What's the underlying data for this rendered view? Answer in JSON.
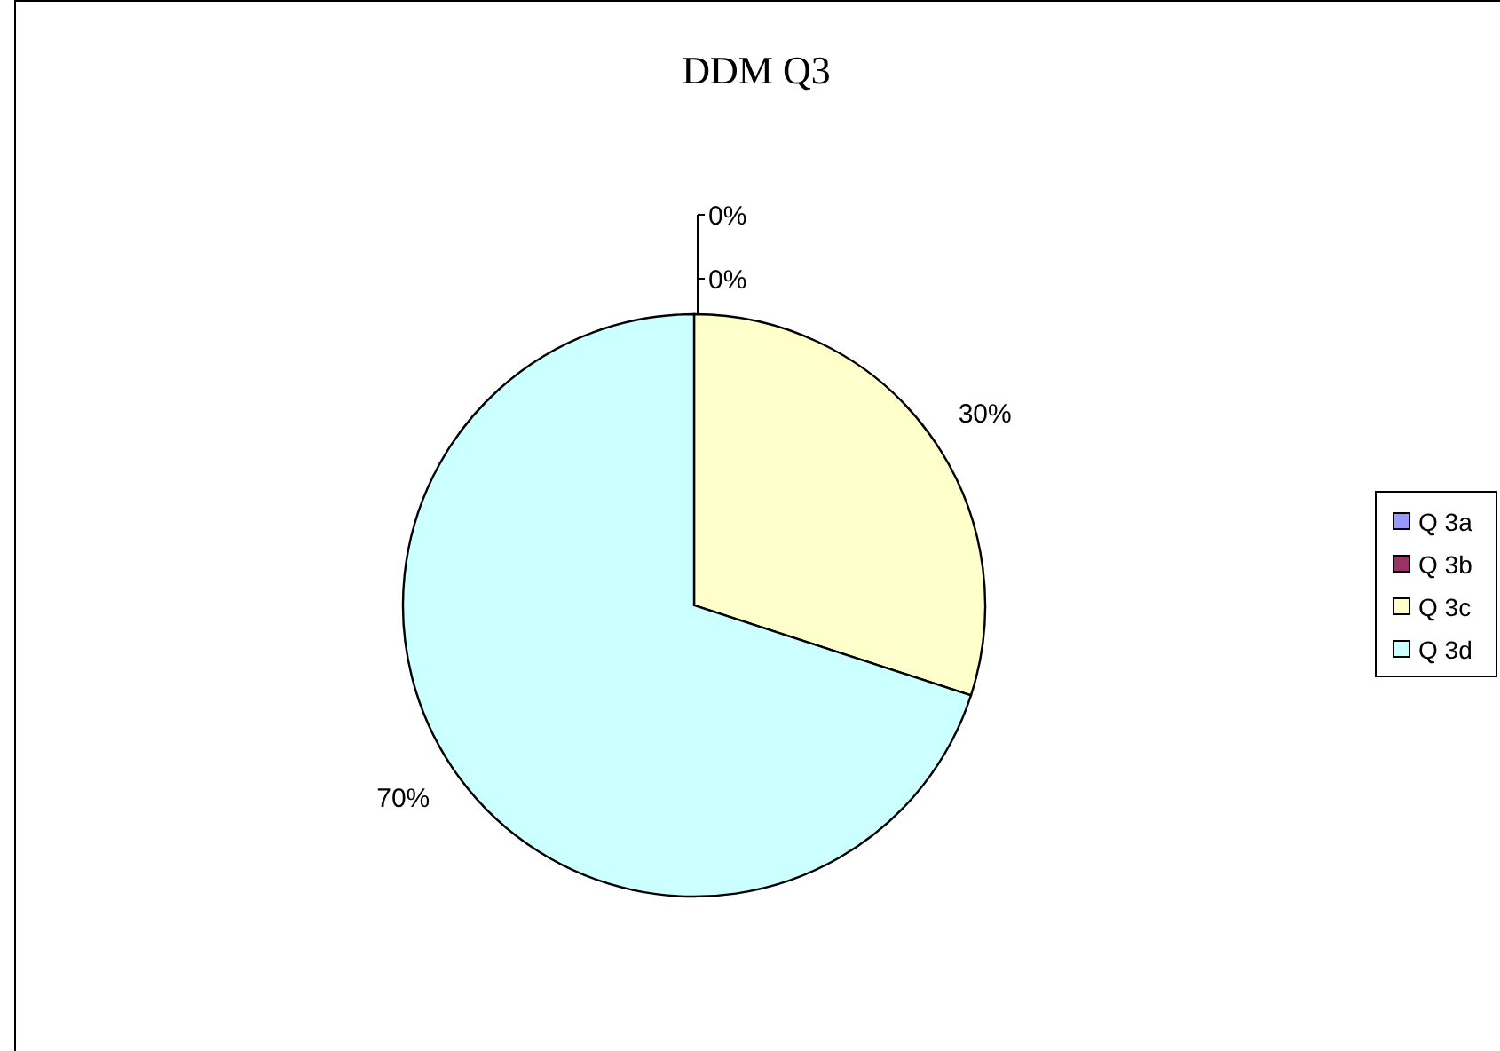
{
  "chart_data": {
    "type": "pie",
    "title": "DDM Q3",
    "categories": [
      "Q 3a",
      "Q 3b",
      "Q 3c",
      "Q 3d"
    ],
    "values": [
      0,
      0,
      30,
      70
    ],
    "colors": [
      "#9999ff",
      "#993366",
      "#ffffcc",
      "#ccffff"
    ],
    "value_labels": [
      "0%",
      "0%",
      "30%",
      "70%"
    ],
    "legend": "right"
  }
}
